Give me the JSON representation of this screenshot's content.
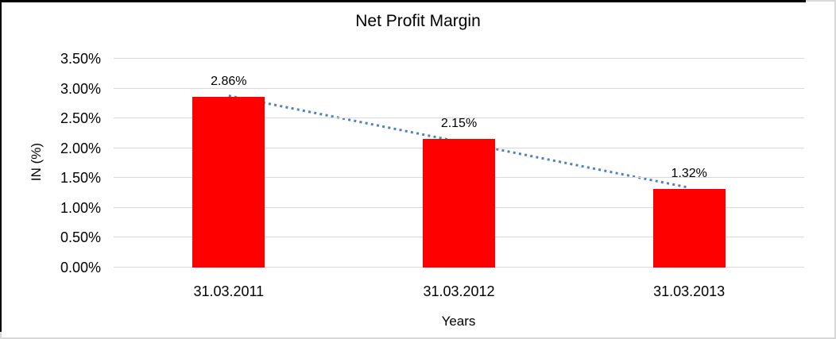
{
  "frame": {
    "outer_border_color": "#d9d9d9",
    "accent_border_color": "#000000",
    "background_color": "#ffffff"
  },
  "chart_data": {
    "type": "bar",
    "title": "Net Profit Margin",
    "xlabel": "Years",
    "ylabel": "IN (%)",
    "categories": [
      "31.03.2011",
      "31.03.2012",
      "31.03.2013"
    ],
    "values": [
      2.86,
      2.15,
      1.32
    ],
    "data_labels": [
      "2.86%",
      "2.15%",
      "1.32%"
    ],
    "ylim": [
      0,
      3.5
    ],
    "ytick_step": 0.5,
    "ytick_labels": [
      "0.00%",
      "0.50%",
      "1.00%",
      "1.50%",
      "2.00%",
      "2.50%",
      "3.00%",
      "3.50%"
    ],
    "grid": true,
    "legend": false,
    "bar_color": "#ff0000",
    "gridline_color": "#d9d9d9",
    "text_color": "#000000",
    "trendline": {
      "type": "linear",
      "style": "dotted",
      "color": "#4f81bd",
      "start_value": 2.88,
      "end_value": 1.34
    }
  }
}
